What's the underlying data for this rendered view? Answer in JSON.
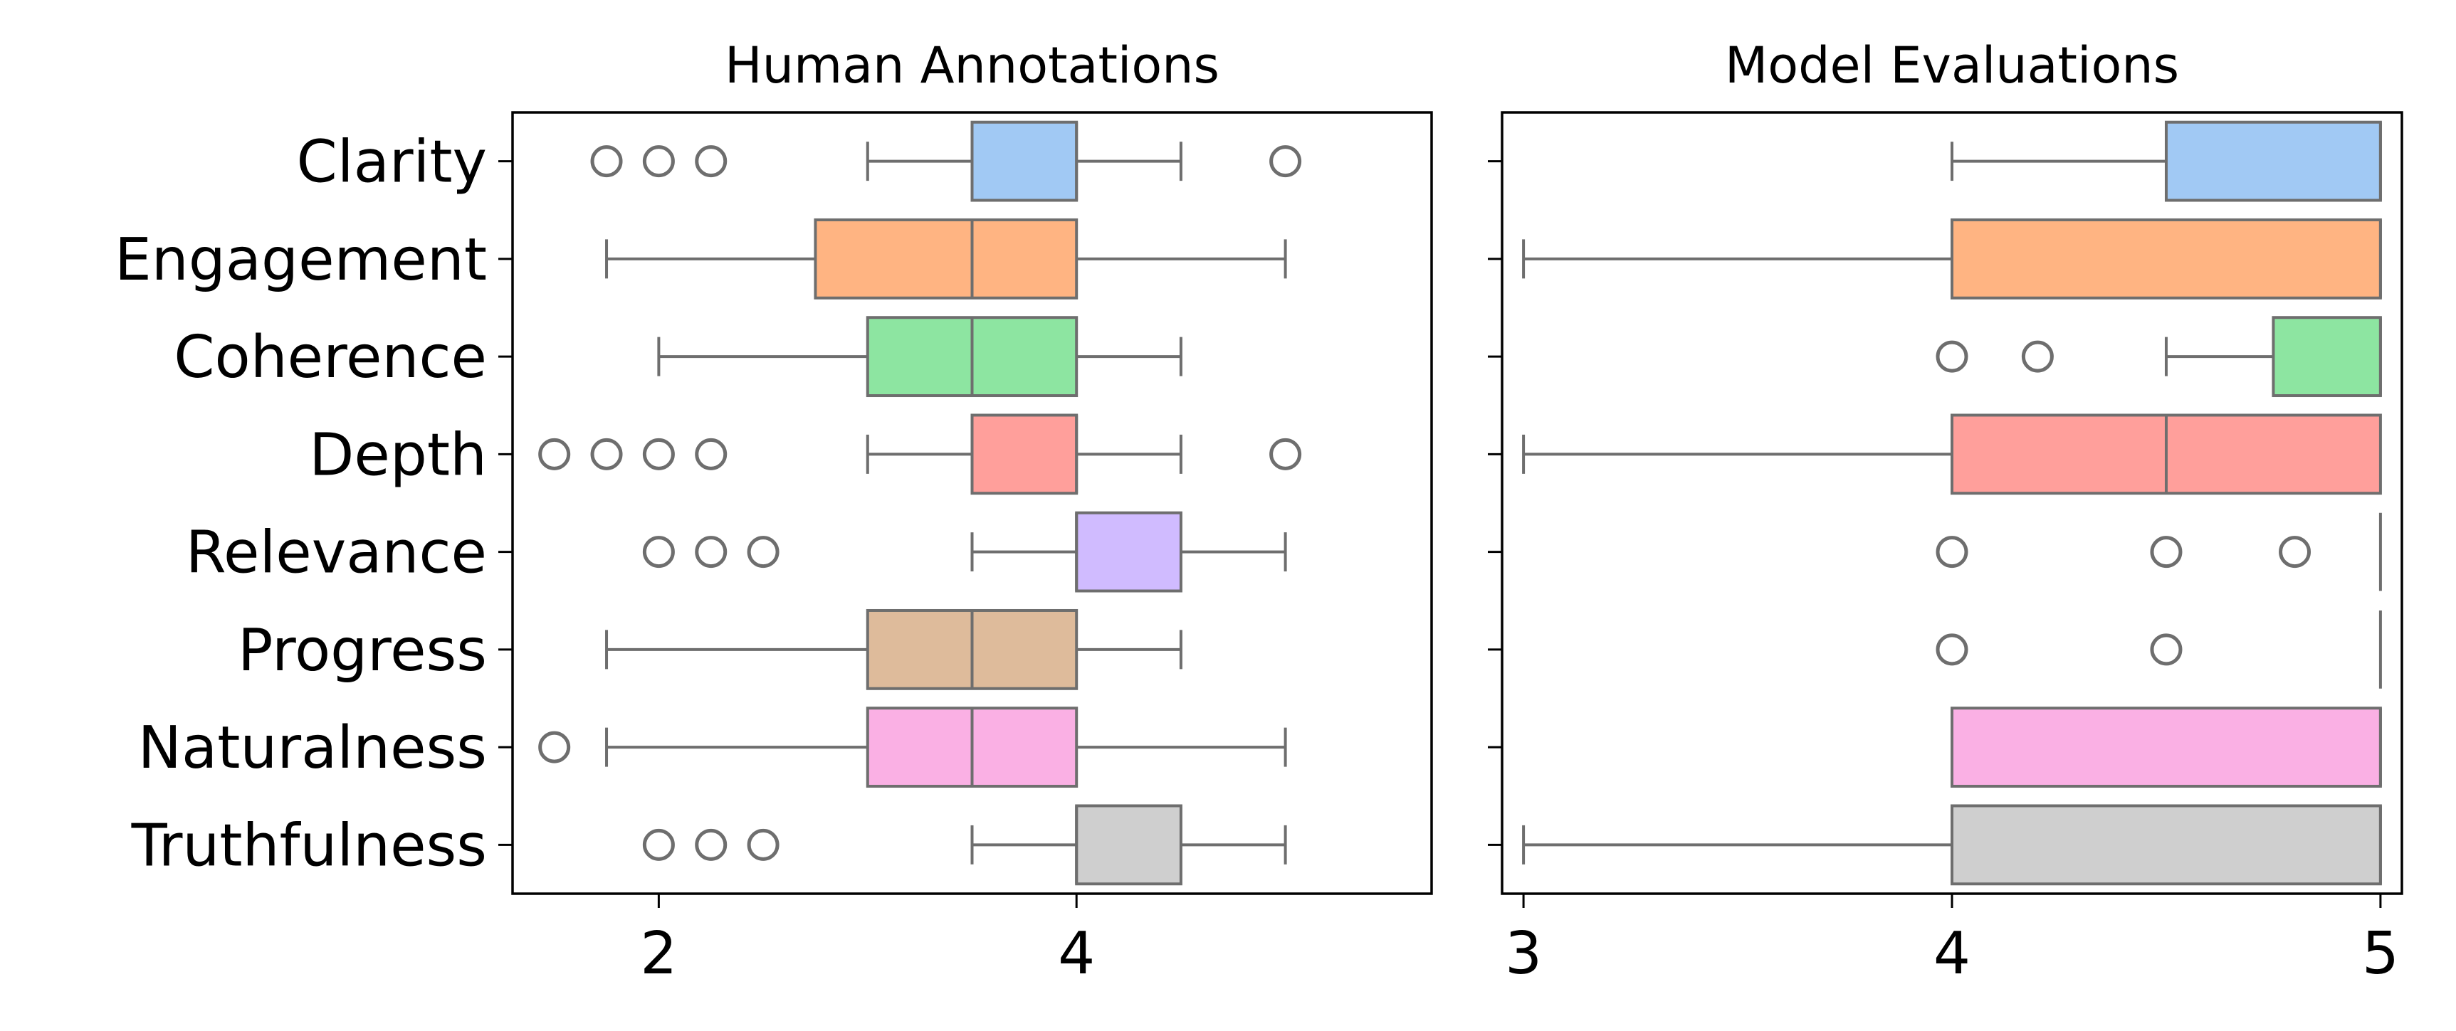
{
  "chart_data": [
    {
      "type": "boxplot",
      "orientation": "horizontal",
      "title": "Human Annotations",
      "xlim": [
        1.3,
        5.7
      ],
      "xticks": [
        2,
        4
      ],
      "categories": [
        "Clarity",
        "Engagement",
        "Coherence",
        "Depth",
        "Relevance",
        "Progress",
        "Naturalness",
        "Truthfulness"
      ],
      "boxes": [
        {
          "category": "Clarity",
          "whisker_low": 3.0,
          "q1": 3.5,
          "median": 4.0,
          "q3": 4.0,
          "whisker_high": 4.5,
          "outliers": [
            1.75,
            2.0,
            2.25,
            5.0
          ],
          "color": "#a1c9f4"
        },
        {
          "category": "Engagement",
          "whisker_low": 1.75,
          "q1": 2.75,
          "median": 3.5,
          "q3": 4.0,
          "whisker_high": 5.0,
          "outliers": [],
          "color": "#ffb482"
        },
        {
          "category": "Coherence",
          "whisker_low": 2.0,
          "q1": 3.0,
          "median": 3.5,
          "q3": 4.0,
          "whisker_high": 4.5,
          "outliers": [],
          "color": "#8de5a1"
        },
        {
          "category": "Depth",
          "whisker_low": 3.0,
          "q1": 3.5,
          "median": 4.0,
          "q3": 4.0,
          "whisker_high": 4.5,
          "outliers": [
            1.5,
            1.75,
            2.0,
            2.25,
            5.0
          ],
          "color": "#ff9f9b"
        },
        {
          "category": "Relevance",
          "whisker_low": 3.5,
          "q1": 4.0,
          "median": 4.0,
          "q3": 4.5,
          "whisker_high": 5.0,
          "outliers": [
            2.0,
            2.25,
            2.5
          ],
          "color": "#d0bbff"
        },
        {
          "category": "Progress",
          "whisker_low": 1.75,
          "q1": 3.0,
          "median": 3.5,
          "q3": 4.0,
          "whisker_high": 4.5,
          "outliers": [],
          "color": "#debb9b"
        },
        {
          "category": "Naturalness",
          "whisker_low": 1.75,
          "q1": 3.0,
          "median": 3.5,
          "q3": 4.0,
          "whisker_high": 5.0,
          "outliers": [
            1.5
          ],
          "color": "#fab0e4"
        },
        {
          "category": "Truthfulness",
          "whisker_low": 3.5,
          "q1": 4.0,
          "median": 4.0,
          "q3": 4.5,
          "whisker_high": 5.0,
          "outliers": [
            2.0,
            2.25,
            2.5
          ],
          "color": "#cfcfcf"
        }
      ]
    },
    {
      "type": "boxplot",
      "orientation": "horizontal",
      "title": "Model Evaluations",
      "xlim": [
        2.95,
        5.05
      ],
      "xticks": [
        3,
        4,
        5
      ],
      "categories": [
        "Clarity",
        "Engagement",
        "Coherence",
        "Depth",
        "Relevance",
        "Progress",
        "Naturalness",
        "Truthfulness"
      ],
      "boxes": [
        {
          "category": "Clarity",
          "whisker_low": 4.0,
          "q1": 4.5,
          "median": 5.0,
          "q3": 5.0,
          "whisker_high": 5.0,
          "outliers": [],
          "color": "#a1c9f4"
        },
        {
          "category": "Engagement",
          "whisker_low": 3.0,
          "q1": 4.0,
          "median": 5.0,
          "q3": 5.0,
          "whisker_high": 5.0,
          "outliers": [],
          "color": "#ffb482"
        },
        {
          "category": "Coherence",
          "whisker_low": 4.5,
          "q1": 4.75,
          "median": 5.0,
          "q3": 5.0,
          "whisker_high": 5.0,
          "outliers": [
            4.0,
            4.2
          ],
          "color": "#8de5a1"
        },
        {
          "category": "Depth",
          "whisker_low": 3.0,
          "q1": 4.0,
          "median": 4.5,
          "q3": 5.0,
          "whisker_high": 5.0,
          "outliers": [],
          "color": "#ff9f9b"
        },
        {
          "category": "Relevance",
          "whisker_low": 5.0,
          "q1": 5.0,
          "median": 5.0,
          "q3": 5.0,
          "whisker_high": 5.0,
          "outliers": [
            4.0,
            4.5,
            4.8
          ],
          "color": "#d0bbff"
        },
        {
          "category": "Progress",
          "whisker_low": 5.0,
          "q1": 5.0,
          "median": 5.0,
          "q3": 5.0,
          "whisker_high": 5.0,
          "outliers": [
            4.0,
            4.5
          ],
          "color": "#debb9b"
        },
        {
          "category": "Naturalness",
          "whisker_low": 4.0,
          "q1": 4.0,
          "median": 5.0,
          "q3": 5.0,
          "whisker_high": 5.0,
          "outliers": [],
          "color": "#fab0e4"
        },
        {
          "category": "Truthfulness",
          "whisker_low": 3.0,
          "q1": 4.0,
          "median": 5.0,
          "q3": 5.0,
          "whisker_high": 5.0,
          "outliers": [],
          "color": "#cfcfcf"
        }
      ]
    }
  ]
}
